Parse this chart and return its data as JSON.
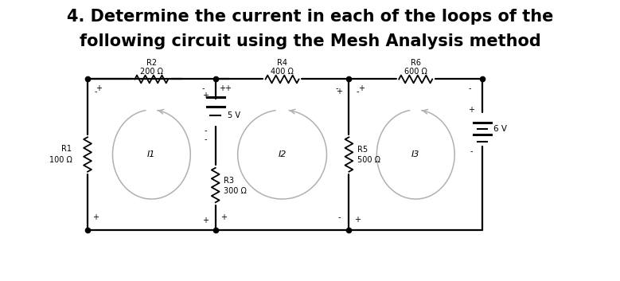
{
  "title_line1": "4. Determine the current in each of the loops of the",
  "title_line2": "following circuit using the Mesh Analysis method",
  "title_fontsize": 15,
  "title_fontweight": "bold",
  "bg_color": "#ffffff",
  "cc": "#000000",
  "gc": "#aaaaaa",
  "components": {
    "R1": {
      "label": "R1",
      "value": "100 Ω"
    },
    "R2": {
      "label": "R2",
      "value": "200 Ω"
    },
    "R3": {
      "label": "R3",
      "value": "300 Ω"
    },
    "R4": {
      "label": "R4",
      "value": "400 Ω"
    },
    "R5": {
      "label": "R5",
      "value": "500 Ω"
    },
    "R6": {
      "label": "R6",
      "value": "600 Ω"
    },
    "V1": {
      "label": "5 V"
    },
    "V2": {
      "label": "6 V"
    }
  },
  "mesh_labels": [
    "I1",
    "I2",
    "I3"
  ],
  "xlim": [
    0,
    11
  ],
  "ylim": [
    0,
    5
  ]
}
